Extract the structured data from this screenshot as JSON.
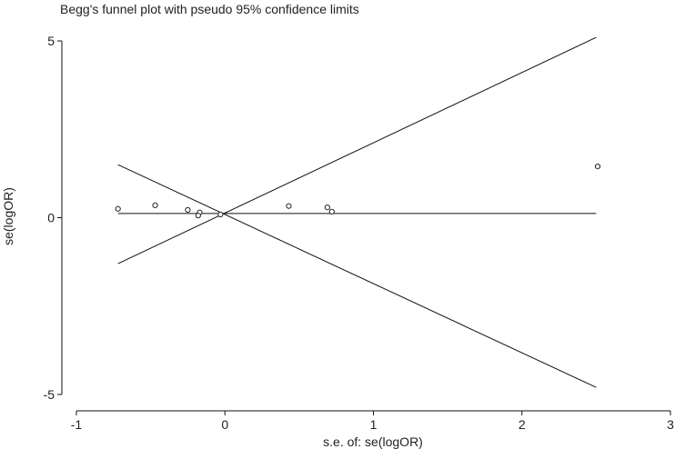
{
  "chart_data": {
    "type": "scatter",
    "title": "Begg's funnel plot with pseudo 95% confidence limits",
    "xlabel": "s.e. of: se(logOR)",
    "ylabel": "se(logOR)",
    "xlim": [
      -1,
      3
    ],
    "ylim": [
      -5,
      5
    ],
    "xticks": [
      -1,
      0,
      1,
      2,
      3
    ],
    "yticks": [
      -5,
      0,
      5
    ],
    "grid": false,
    "points": [
      {
        "x": -0.72,
        "y": 0.25
      },
      {
        "x": -0.47,
        "y": 0.35
      },
      {
        "x": -0.25,
        "y": 0.22
      },
      {
        "x": -0.17,
        "y": 0.15
      },
      {
        "x": -0.18,
        "y": 0.06
      },
      {
        "x": -0.03,
        "y": 0.09
      },
      {
        "x": 0.43,
        "y": 0.33
      },
      {
        "x": 0.69,
        "y": 0.29
      },
      {
        "x": 0.72,
        "y": 0.17
      },
      {
        "x": 2.51,
        "y": 1.45
      }
    ],
    "lines": [
      {
        "x": [
          -0.72,
          2.5
        ],
        "y": [
          0.12,
          0.12
        ]
      },
      {
        "x": [
          -0.72,
          2.5
        ],
        "y": [
          -1.3,
          5.1
        ]
      },
      {
        "x": [
          -0.72,
          2.5
        ],
        "y": [
          1.5,
          -4.8
        ]
      }
    ]
  }
}
